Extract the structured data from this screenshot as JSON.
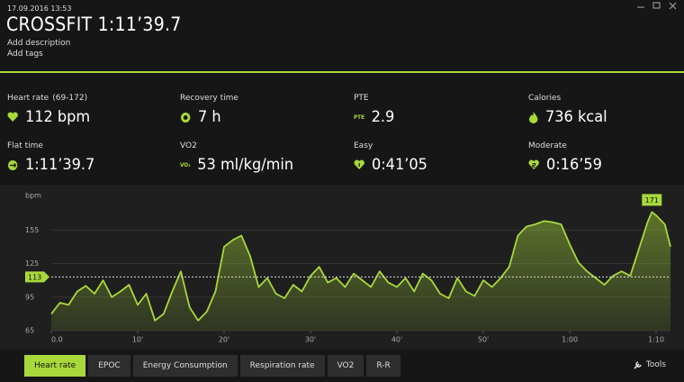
{
  "header": {
    "date": "17.09.2016 13:53",
    "title": "CROSSFIT 1:11’39.7",
    "description_link": "Add description",
    "tags_link": "Add tags"
  },
  "stats": [
    {
      "label": "Heart rate",
      "range": "(69-172)",
      "value": "112 bpm"
    },
    {
      "label": "Recovery time",
      "value": "7 h"
    },
    {
      "label": "PTE",
      "icon_text": "PTE",
      "value": "2.9"
    },
    {
      "label": "Calories",
      "value": "736 kcal"
    },
    {
      "label": "Flat time",
      "value": "1:11’39.7"
    },
    {
      "label": "VO2",
      "icon_text": "VO₂",
      "value": "53 ml/kg/min"
    },
    {
      "label": "Easy",
      "value": "0:41’05"
    },
    {
      "label": "Moderate",
      "value": "0:16’59"
    }
  ],
  "chart_data": {
    "type": "line",
    "y_label": "bpm",
    "x": [
      0,
      1,
      2,
      3,
      4,
      5,
      6,
      7,
      8,
      9,
      10,
      11,
      12,
      13,
      14,
      15,
      16,
      17,
      18,
      19,
      20,
      21,
      22,
      23,
      24,
      25,
      26,
      27,
      28,
      29,
      30,
      31,
      32,
      33,
      34,
      35,
      36,
      37,
      38,
      39,
      40,
      41,
      42,
      43,
      44,
      45,
      46,
      47,
      48,
      49,
      50,
      51,
      52,
      53,
      54,
      55,
      56,
      57,
      58,
      59,
      60,
      61,
      62,
      63,
      64,
      65,
      66,
      67,
      68,
      69,
      69.5,
      70,
      71,
      71.66
    ],
    "series": [
      {
        "color": "#a8d93a",
        "values": [
          80,
          90,
          88,
          100,
          105,
          98,
          110,
          95,
          100,
          106,
          88,
          98,
          74,
          80,
          100,
          118,
          86,
          74,
          82,
          100,
          140,
          146,
          150,
          132,
          104,
          112,
          98,
          94,
          106,
          100,
          114,
          122,
          108,
          112,
          104,
          116,
          110,
          104,
          118,
          108,
          104,
          112,
          100,
          116,
          110,
          98,
          94,
          112,
          100,
          96,
          110,
          104,
          112,
          122,
          150,
          158,
          160,
          163,
          162,
          160,
          142,
          126,
          118,
          112,
          106,
          114,
          118,
          114,
          138,
          162,
          171,
          168,
          160,
          140
        ]
      }
    ],
    "xlim": [
      0,
      71.66
    ],
    "ylim": [
      65,
      185
    ],
    "yticks": [
      65,
      95,
      125,
      155
    ],
    "xticks": [
      {
        "value": 0,
        "label": "0.0"
      },
      {
        "value": 10,
        "label": "10'"
      },
      {
        "value": 20,
        "label": "20'"
      },
      {
        "value": 30,
        "label": "30'"
      },
      {
        "value": 40,
        "label": "40'"
      },
      {
        "value": 50,
        "label": "50'"
      },
      {
        "value": 60,
        "label": "1:00"
      },
      {
        "value": 70,
        "label": "1:10"
      }
    ],
    "grid": true,
    "average": 113,
    "max_marker": {
      "x": 69.5,
      "value": 171
    }
  },
  "tabs": [
    "Heart rate",
    "EPOC",
    "Energy Consumption",
    "Respiration rate",
    "VO2",
    "R-R"
  ],
  "active_tab": 0,
  "tools": "Tools"
}
